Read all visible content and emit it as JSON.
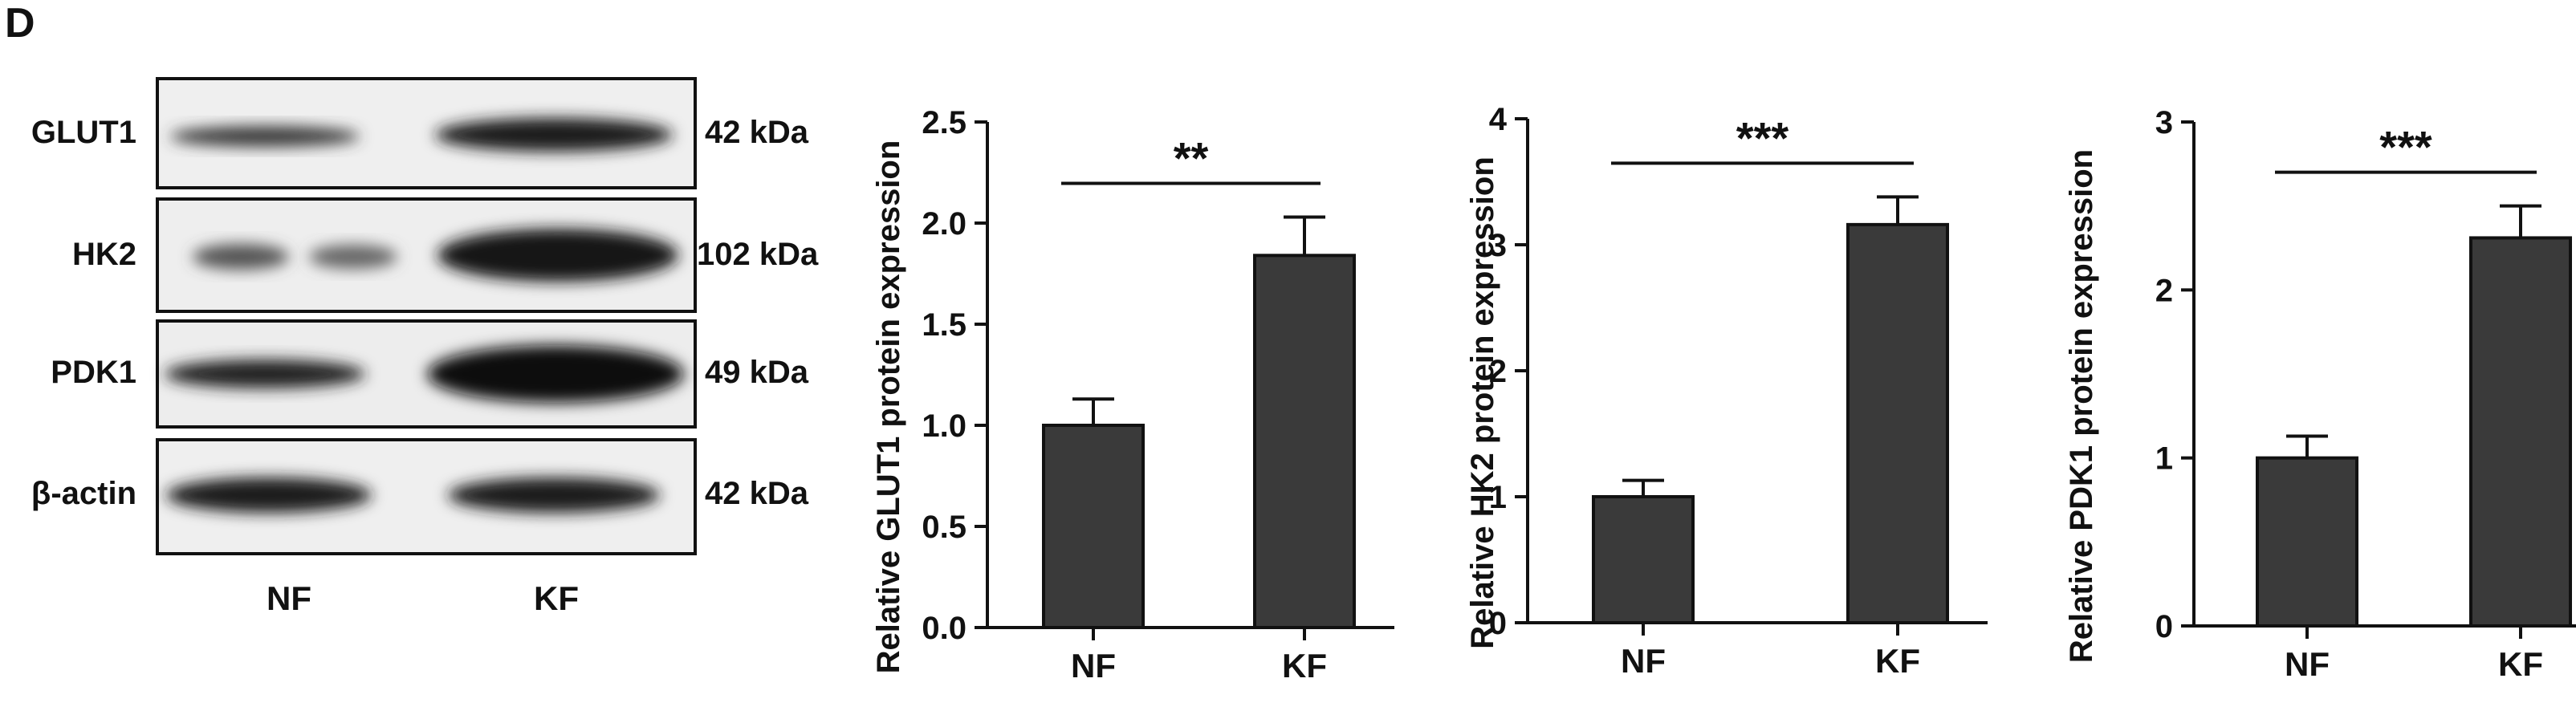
{
  "panel_label": "D",
  "blot": {
    "rows": [
      {
        "protein": "GLUT1",
        "size": "42 kDa"
      },
      {
        "protein": "HK2",
        "size": "102 kDa"
      },
      {
        "protein": "PDK1",
        "size": "49 kDa"
      },
      {
        "protein": "β-actin",
        "size": "42 kDa"
      }
    ],
    "lanes": [
      "NF",
      "KF"
    ]
  },
  "chart_data": [
    {
      "type": "bar",
      "categories": [
        "NF",
        "KF"
      ],
      "values": [
        1.0,
        1.84
      ],
      "errors": [
        0.13,
        0.19
      ],
      "ylabel": "Relative GLUT1 protein expression",
      "ylim": [
        0,
        2.5
      ],
      "yticks": [
        "0.0",
        "0.5",
        "1.0",
        "1.5",
        "2.0",
        "2.5"
      ],
      "significance": "**",
      "bar_color": "#3a3a3a"
    },
    {
      "type": "bar",
      "categories": [
        "NF",
        "KF"
      ],
      "values": [
        1.0,
        3.16
      ],
      "errors": [
        0.13,
        0.22
      ],
      "ylabel": "Relative HK2 protein expression",
      "ylim": [
        0,
        4
      ],
      "yticks": [
        "0",
        "1",
        "2",
        "3",
        "4"
      ],
      "significance": "***",
      "bar_color": "#3a3a3a"
    },
    {
      "type": "bar",
      "categories": [
        "NF",
        "KF"
      ],
      "values": [
        1.0,
        2.31
      ],
      "errors": [
        0.13,
        0.19
      ],
      "ylabel": "Relative PDK1 protein expression",
      "ylim": [
        0,
        3
      ],
      "yticks": [
        "0",
        "1",
        "2",
        "3"
      ],
      "significance": "***",
      "bar_color": "#3a3a3a"
    }
  ]
}
